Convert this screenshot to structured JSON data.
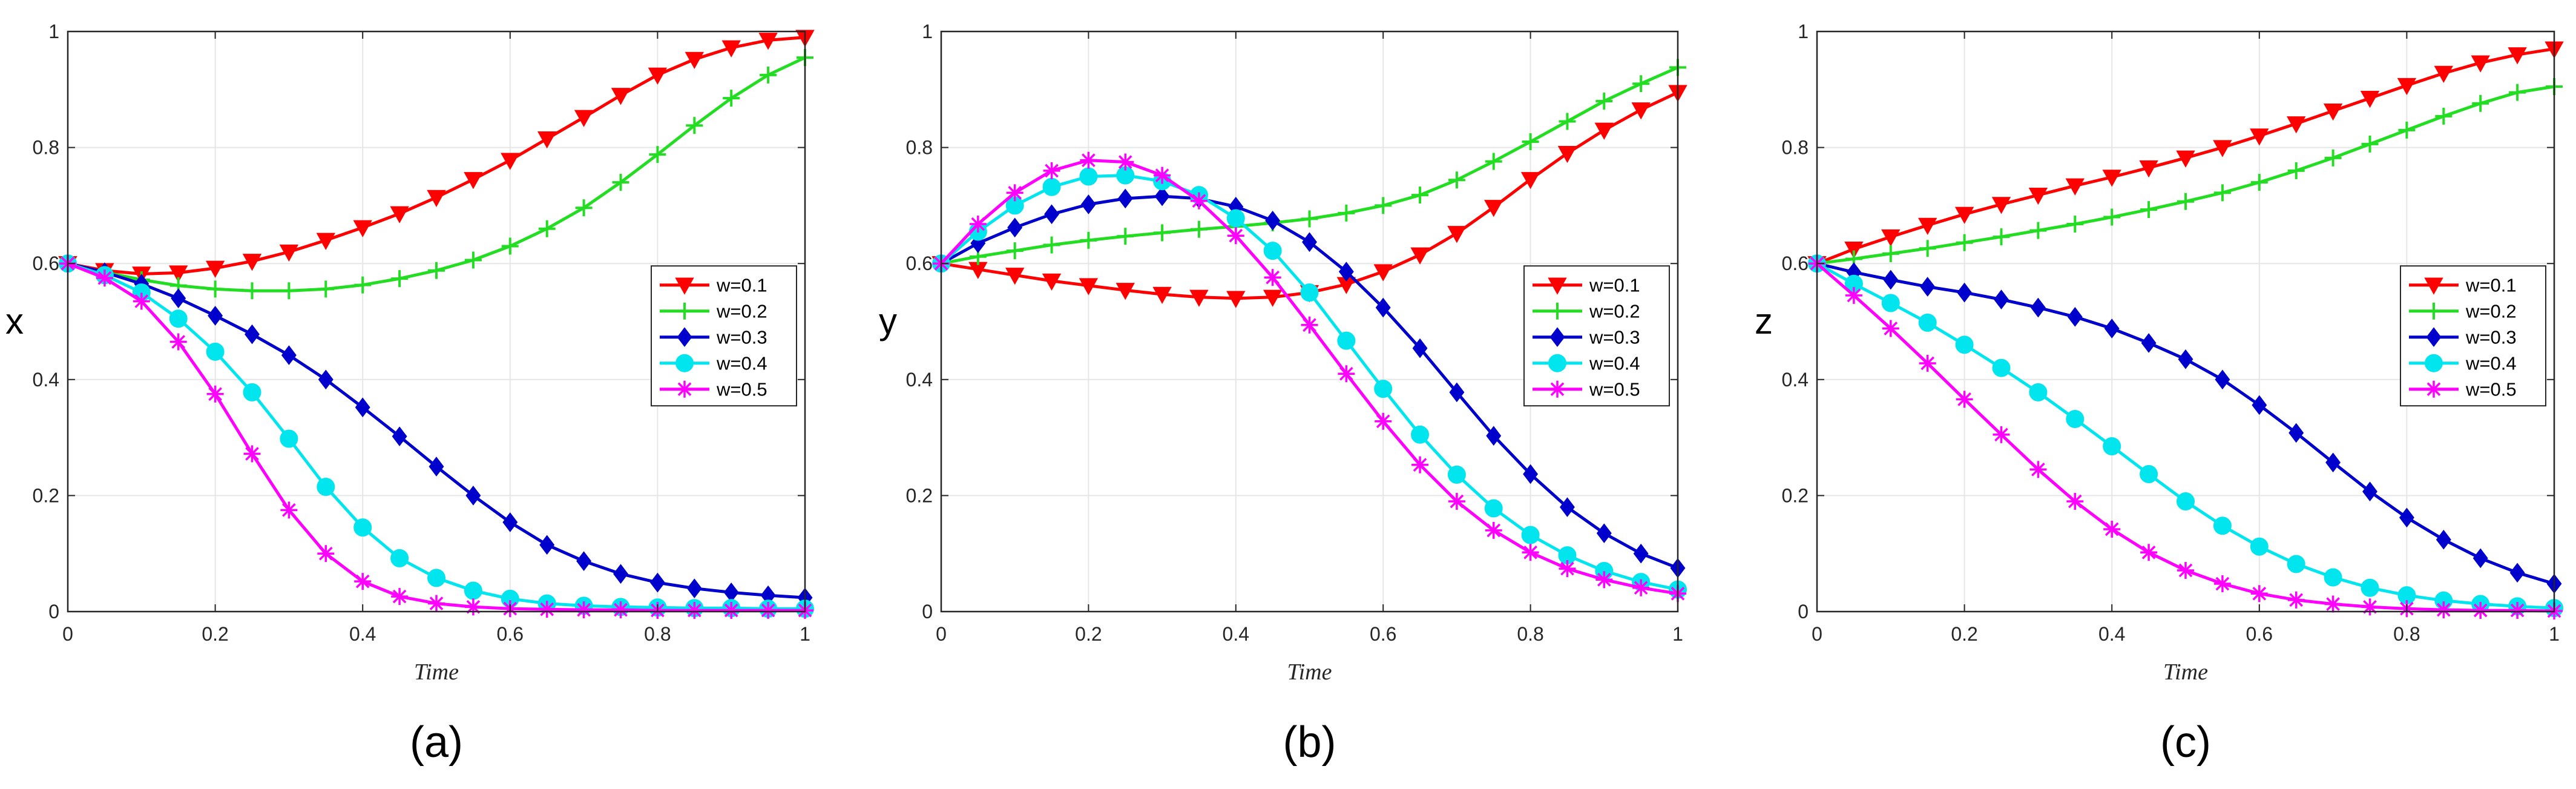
{
  "colors": {
    "w01": "#ff0000",
    "w02": "#22dd22",
    "w03": "#0000cc",
    "w04": "#00e5ee",
    "w05": "#ff00ff",
    "grid": "#e6e6e6",
    "axis": "#262626"
  },
  "chart_data": [
    {
      "type": "line",
      "caption": "(a)",
      "ylabel": "x",
      "xlabel": "Time",
      "xlim": [
        0,
        1
      ],
      "ylim": [
        0,
        1
      ],
      "xticks": [
        "0",
        "0.2",
        "0.4",
        "0.6",
        "0.8",
        "1"
      ],
      "yticks": [
        "0",
        "0.2",
        "0.4",
        "0.6",
        "0.8",
        "1"
      ],
      "grid": true,
      "legend": "right-center",
      "x": [
        0,
        0.05,
        0.1,
        0.15,
        0.2,
        0.25,
        0.3,
        0.35,
        0.4,
        0.45,
        0.5,
        0.55,
        0.6,
        0.65,
        0.7,
        0.75,
        0.8,
        0.85,
        0.9,
        0.95,
        1.0
      ],
      "series": [
        {
          "name": "w=0.1",
          "marker": "triangle-down",
          "values": [
            0.6,
            0.588,
            0.582,
            0.584,
            0.592,
            0.604,
            0.62,
            0.64,
            0.662,
            0.686,
            0.714,
            0.745,
            0.778,
            0.815,
            0.852,
            0.89,
            0.925,
            0.952,
            0.972,
            0.985,
            0.99
          ]
        },
        {
          "name": "w=0.2",
          "marker": "plus",
          "values": [
            0.6,
            0.585,
            0.572,
            0.562,
            0.556,
            0.553,
            0.553,
            0.556,
            0.563,
            0.574,
            0.588,
            0.606,
            0.63,
            0.66,
            0.696,
            0.74,
            0.788,
            0.838,
            0.885,
            0.925,
            0.955
          ]
        },
        {
          "name": "w=0.3",
          "marker": "diamond",
          "values": [
            0.6,
            0.585,
            0.565,
            0.54,
            0.51,
            0.478,
            0.442,
            0.4,
            0.352,
            0.302,
            0.25,
            0.2,
            0.154,
            0.115,
            0.087,
            0.065,
            0.05,
            0.04,
            0.033,
            0.028,
            0.024
          ]
        },
        {
          "name": "w=0.4",
          "marker": "circle",
          "values": [
            0.6,
            0.58,
            0.55,
            0.505,
            0.448,
            0.378,
            0.298,
            0.215,
            0.145,
            0.092,
            0.058,
            0.036,
            0.022,
            0.014,
            0.01,
            0.008,
            0.007,
            0.006,
            0.006,
            0.005,
            0.005
          ]
        },
        {
          "name": "w=0.5",
          "marker": "asterisk",
          "values": [
            0.6,
            0.575,
            0.535,
            0.465,
            0.375,
            0.272,
            0.175,
            0.1,
            0.052,
            0.026,
            0.014,
            0.008,
            0.005,
            0.004,
            0.003,
            0.003,
            0.002,
            0.002,
            0.002,
            0.002,
            0.002
          ]
        }
      ]
    },
    {
      "type": "line",
      "caption": "(b)",
      "ylabel": "y",
      "xlabel": "Time",
      "xlim": [
        0,
        1
      ],
      "ylim": [
        0,
        1
      ],
      "xticks": [
        "0",
        "0.2",
        "0.4",
        "0.6",
        "0.8",
        "1"
      ],
      "yticks": [
        "0",
        "0.2",
        "0.4",
        "0.6",
        "0.8",
        "1"
      ],
      "grid": true,
      "legend": "right-center",
      "x": [
        0,
        0.05,
        0.1,
        0.15,
        0.2,
        0.25,
        0.3,
        0.35,
        0.4,
        0.45,
        0.5,
        0.55,
        0.6,
        0.65,
        0.7,
        0.75,
        0.8,
        0.85,
        0.9,
        0.95,
        1.0
      ],
      "series": [
        {
          "name": "w=0.1",
          "marker": "triangle-down",
          "values": [
            0.6,
            0.59,
            0.58,
            0.57,
            0.562,
            0.554,
            0.547,
            0.542,
            0.54,
            0.542,
            0.55,
            0.564,
            0.586,
            0.615,
            0.652,
            0.697,
            0.745,
            0.79,
            0.83,
            0.865,
            0.895
          ]
        },
        {
          "name": "w=0.2",
          "marker": "plus",
          "values": [
            0.6,
            0.612,
            0.622,
            0.632,
            0.64,
            0.647,
            0.653,
            0.659,
            0.664,
            0.67,
            0.677,
            0.687,
            0.7,
            0.718,
            0.744,
            0.776,
            0.81,
            0.845,
            0.88,
            0.91,
            0.938
          ]
        },
        {
          "name": "w=0.3",
          "marker": "diamond",
          "values": [
            0.6,
            0.635,
            0.662,
            0.685,
            0.702,
            0.712,
            0.716,
            0.712,
            0.698,
            0.674,
            0.637,
            0.586,
            0.524,
            0.454,
            0.378,
            0.303,
            0.237,
            0.18,
            0.135,
            0.1,
            0.075
          ]
        },
        {
          "name": "w=0.4",
          "marker": "circle",
          "values": [
            0.6,
            0.655,
            0.7,
            0.732,
            0.75,
            0.752,
            0.742,
            0.718,
            0.678,
            0.622,
            0.55,
            0.467,
            0.384,
            0.305,
            0.236,
            0.178,
            0.132,
            0.097,
            0.07,
            0.051,
            0.038
          ]
        },
        {
          "name": "w=0.5",
          "marker": "asterisk",
          "values": [
            0.6,
            0.668,
            0.722,
            0.76,
            0.778,
            0.775,
            0.752,
            0.708,
            0.648,
            0.576,
            0.494,
            0.41,
            0.328,
            0.253,
            0.19,
            0.14,
            0.102,
            0.074,
            0.055,
            0.041,
            0.031
          ]
        }
      ]
    },
    {
      "type": "line",
      "caption": "(c)",
      "ylabel": "z",
      "xlabel": "Time",
      "xlim": [
        0,
        1
      ],
      "ylim": [
        0,
        1
      ],
      "xticks": [
        "0",
        "0.2",
        "0.4",
        "0.6",
        "0.8",
        "1"
      ],
      "yticks": [
        "0",
        "0.2",
        "0.4",
        "0.6",
        "0.8",
        "1"
      ],
      "grid": true,
      "legend": "right-center",
      "x": [
        0,
        0.05,
        0.1,
        0.15,
        0.2,
        0.25,
        0.3,
        0.35,
        0.4,
        0.45,
        0.5,
        0.55,
        0.6,
        0.65,
        0.7,
        0.75,
        0.8,
        0.85,
        0.9,
        0.95,
        1.0
      ],
      "series": [
        {
          "name": "w=0.1",
          "marker": "triangle-down",
          "values": [
            0.6,
            0.625,
            0.646,
            0.666,
            0.685,
            0.702,
            0.718,
            0.734,
            0.749,
            0.765,
            0.782,
            0.8,
            0.82,
            0.841,
            0.863,
            0.885,
            0.907,
            0.928,
            0.946,
            0.96,
            0.97
          ]
        },
        {
          "name": "w=0.2",
          "marker": "plus",
          "values": [
            0.6,
            0.608,
            0.617,
            0.626,
            0.636,
            0.646,
            0.657,
            0.668,
            0.68,
            0.693,
            0.707,
            0.722,
            0.74,
            0.76,
            0.782,
            0.806,
            0.83,
            0.854,
            0.876,
            0.895,
            0.905
          ]
        },
        {
          "name": "w=0.3",
          "marker": "diamond",
          "values": [
            0.6,
            0.585,
            0.572,
            0.56,
            0.55,
            0.538,
            0.524,
            0.508,
            0.488,
            0.463,
            0.435,
            0.4,
            0.356,
            0.308,
            0.257,
            0.207,
            0.162,
            0.124,
            0.092,
            0.067,
            0.048
          ]
        },
        {
          "name": "w=0.4",
          "marker": "circle",
          "values": [
            0.6,
            0.565,
            0.532,
            0.498,
            0.46,
            0.42,
            0.378,
            0.332,
            0.285,
            0.237,
            0.19,
            0.148,
            0.112,
            0.082,
            0.059,
            0.041,
            0.028,
            0.019,
            0.013,
            0.009,
            0.006
          ]
        },
        {
          "name": "w=0.5",
          "marker": "asterisk",
          "values": [
            0.6,
            0.545,
            0.488,
            0.428,
            0.366,
            0.305,
            0.245,
            0.19,
            0.142,
            0.102,
            0.071,
            0.048,
            0.031,
            0.02,
            0.013,
            0.008,
            0.005,
            0.003,
            0.002,
            0.002,
            0.001
          ]
        }
      ]
    }
  ]
}
